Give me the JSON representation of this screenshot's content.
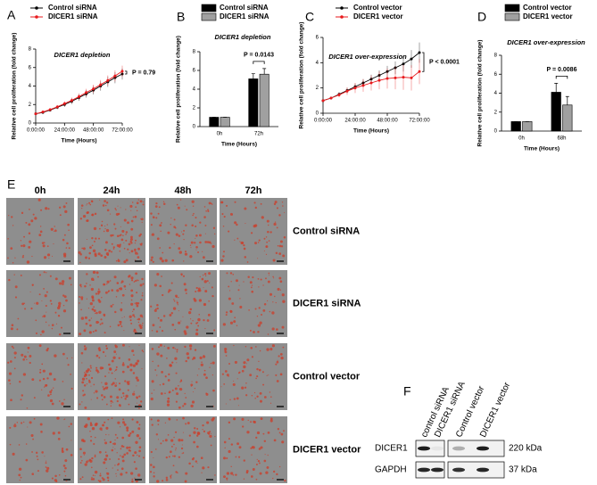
{
  "chart_data": [
    {
      "panel": "A",
      "type": "line",
      "title": "DICER1 depletion",
      "x_label": "Time (Hours)",
      "y_label": "Relative cell proliferation (fold change)",
      "x": [
        0,
        6,
        12,
        18,
        24,
        30,
        36,
        42,
        48,
        54,
        60,
        66,
        72
      ],
      "xlim": [
        0,
        72
      ],
      "xticks": [
        {
          "value": 0,
          "label": "0:00:00"
        },
        {
          "value": 24,
          "label": "24:00:00"
        },
        {
          "value": 48,
          "label": "48:00:00"
        },
        {
          "value": 72,
          "label": "72:00:00"
        }
      ],
      "ylim": [
        0,
        8
      ],
      "yticks": [
        0,
        2,
        4,
        6,
        8
      ],
      "series": [
        {
          "name": "Control siRNA",
          "color": "#000000",
          "values": [
            1,
            1.15,
            1.4,
            1.7,
            2.0,
            2.35,
            2.75,
            3.15,
            3.55,
            4.0,
            4.45,
            4.9,
            5.3
          ],
          "errors": [
            0.05,
            0.1,
            0.15,
            0.2,
            0.25,
            0.3,
            0.35,
            0.4,
            0.45,
            0.5,
            0.55,
            0.6,
            0.6
          ]
        },
        {
          "name": "DICER1 siRNA",
          "color": "#e8191c",
          "values": [
            1,
            1.2,
            1.45,
            1.75,
            2.1,
            2.45,
            2.85,
            3.3,
            3.7,
            4.15,
            4.6,
            5.1,
            5.6
          ],
          "errors": [
            0.05,
            0.1,
            0.15,
            0.2,
            0.25,
            0.3,
            0.35,
            0.4,
            0.45,
            0.5,
            0.55,
            0.6,
            0.6
          ]
        }
      ],
      "annotation": "P = 0.79"
    },
    {
      "panel": "B",
      "type": "bar",
      "title": "DICER1 depletion",
      "x_label": "Time (Hours)",
      "y_label": "Relative cell proliferation (fold change)",
      "categories": [
        "0h",
        "72h"
      ],
      "ylim": [
        0,
        8
      ],
      "yticks": [
        0,
        2,
        4,
        6,
        8
      ],
      "series": [
        {
          "name": "Control siRNA",
          "color": "#000000",
          "values": [
            1,
            5.1
          ],
          "errors": [
            0,
            0.55
          ]
        },
        {
          "name": "DICER1 siRNA",
          "color": "#a0a0a0",
          "values": [
            1,
            5.6
          ],
          "errors": [
            0,
            0.6
          ]
        }
      ],
      "annotation": "P = 0.0143"
    },
    {
      "panel": "C",
      "type": "line",
      "title": "DICER1 over-expression",
      "x_label": "Time (Hours)",
      "y_label": "Relative cell proliferation (fold change)",
      "x": [
        0,
        6,
        12,
        18,
        24,
        30,
        36,
        42,
        48,
        54,
        60,
        66,
        72
      ],
      "xlim": [
        0,
        72
      ],
      "xticks": [
        {
          "value": 0,
          "label": "0:00:00"
        },
        {
          "value": 24,
          "label": "24:00:00"
        },
        {
          "value": 48,
          "label": "48:00:00"
        },
        {
          "value": 72,
          "label": "72:00:00"
        }
      ],
      "ylim": [
        0,
        6
      ],
      "yticks": [
        0,
        2,
        4,
        6
      ],
      "series": [
        {
          "name": "Control vector",
          "color": "#000000",
          "values": [
            1,
            1.2,
            1.5,
            1.8,
            2.1,
            2.4,
            2.7,
            3.0,
            3.3,
            3.6,
            3.9,
            4.3,
            4.8
          ],
          "errors": [
            0.05,
            0.1,
            0.15,
            0.2,
            0.25,
            0.3,
            0.35,
            0.4,
            0.45,
            0.5,
            0.6,
            0.7,
            0.8
          ]
        },
        {
          "name": "DICER1 vector",
          "color": "#e8191c",
          "values": [
            1,
            1.2,
            1.45,
            1.75,
            2.0,
            2.2,
            2.4,
            2.6,
            2.75,
            2.8,
            2.85,
            2.8,
            3.3
          ],
          "errors": [
            0.05,
            0.1,
            0.2,
            0.3,
            0.4,
            0.5,
            0.6,
            0.7,
            0.8,
            0.9,
            1.0,
            1.0,
            1.0
          ]
        }
      ],
      "annotation": "P < 0.0001"
    },
    {
      "panel": "D",
      "type": "bar",
      "title": "DICER1 over-expression",
      "x_label": "Time (Hours)",
      "y_label": "Relative cell proliferation (fold change)",
      "categories": [
        "0h",
        "68h"
      ],
      "ylim": [
        0,
        8
      ],
      "yticks": [
        0,
        2,
        4,
        6,
        8
      ],
      "series": [
        {
          "name": "Control vector",
          "color": "#000000",
          "values": [
            1,
            4.1
          ],
          "errors": [
            0,
            0.95
          ]
        },
        {
          "name": "DICER1 vector",
          "color": "#a0a0a0",
          "values": [
            1,
            2.75
          ],
          "errors": [
            0,
            0.9
          ]
        }
      ],
      "annotation": "P = 0.0086"
    }
  ],
  "image_grid": {
    "panel": "E",
    "columns": [
      "0h",
      "24h",
      "48h",
      "72h"
    ],
    "rows": [
      "Control siRNA",
      "DICER1 siRNA",
      "Control vector",
      "DICER1 vector"
    ]
  },
  "western_blot": {
    "panel": "F",
    "lanes": [
      "control siRNA",
      "DICER1 siRNA",
      "Control vector",
      "DICER1 vector"
    ],
    "proteins": [
      "DICER1",
      "GAPDH"
    ],
    "sizes": [
      "220 kDa",
      "37 kDa"
    ]
  }
}
